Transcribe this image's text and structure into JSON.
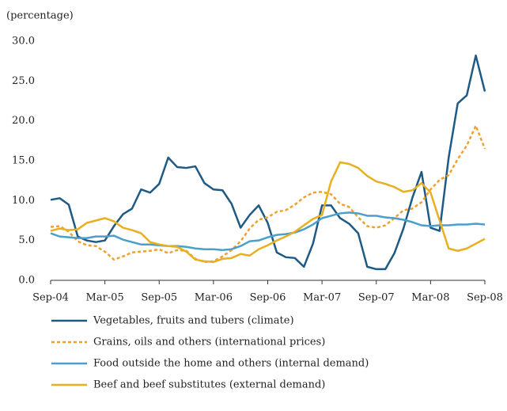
{
  "chart_data": {
    "type": "line",
    "y_label": "(percentage)",
    "categories": [
      "Sep-04",
      null,
      null,
      null,
      null,
      null,
      "Mar-05",
      null,
      null,
      null,
      null,
      null,
      "Sep-05",
      null,
      null,
      null,
      null,
      null,
      "Mar-06",
      null,
      null,
      null,
      null,
      null,
      "Sep-06",
      null,
      null,
      null,
      null,
      null,
      "Mar-07",
      null,
      null,
      null,
      null,
      null,
      "Sep-07",
      null,
      null,
      null,
      null,
      null,
      "Mar-08",
      null,
      null,
      null,
      null,
      null,
      "Sep-08"
    ],
    "ylim": [
      0,
      30
    ],
    "yticks": [
      {
        "value": 0,
        "label": "0.0"
      },
      {
        "value": 5,
        "label": "5.0"
      },
      {
        "value": 10,
        "label": "10.0"
      },
      {
        "value": 15,
        "label": "15.0"
      },
      {
        "value": 20,
        "label": "20.0"
      },
      {
        "value": 25,
        "label": "25.0"
      },
      {
        "value": 30,
        "label": "30.0"
      }
    ],
    "grid": false,
    "legend": "bottom",
    "series": [
      {
        "name": "Vegetables, fruits and tubers (climate)",
        "color": "#1f5a85",
        "dashed": false,
        "values": [
          10.1,
          10.3,
          9.5,
          5.5,
          5.0,
          4.8,
          5.0,
          6.8,
          8.3,
          9.0,
          11.4,
          11.0,
          12.1,
          15.4,
          14.2,
          14.1,
          14.3,
          12.2,
          11.4,
          11.3,
          9.6,
          6.6,
          8.2,
          9.4,
          7.2,
          3.5,
          2.9,
          2.8,
          1.7,
          4.6,
          9.4,
          9.4,
          7.8,
          7.1,
          5.9,
          1.7,
          1.4,
          1.4,
          3.4,
          6.5,
          10.4,
          13.6,
          6.6,
          6.2,
          15.4,
          22.2,
          23.2,
          28.2,
          23.7
        ]
      },
      {
        "name": "Grains, oils and others (international prices)",
        "color": "#f0a030",
        "dashed": true,
        "values": [
          6.7,
          6.8,
          6.1,
          4.9,
          4.4,
          4.3,
          3.6,
          2.6,
          3.0,
          3.5,
          3.6,
          3.7,
          3.9,
          3.4,
          3.8,
          3.7,
          2.7,
          2.3,
          2.4,
          3.0,
          3.8,
          4.9,
          6.5,
          7.6,
          7.9,
          8.6,
          8.8,
          9.5,
          10.4,
          11.0,
          11.1,
          10.8,
          9.6,
          9.2,
          7.9,
          6.8,
          6.6,
          6.9,
          7.8,
          8.8,
          9.0,
          9.8,
          11.4,
          12.6,
          13.2,
          15.2,
          16.9,
          19.4,
          16.5
        ]
      },
      {
        "name": "Food outside the home and others (internal demand)",
        "color": "#4aa0c8",
        "dashed": false,
        "values": [
          5.9,
          5.5,
          5.4,
          5.3,
          5.3,
          5.5,
          5.5,
          5.6,
          5.1,
          4.8,
          4.5,
          4.5,
          4.4,
          4.3,
          4.3,
          4.2,
          4.0,
          3.9,
          3.9,
          3.8,
          3.9,
          4.3,
          4.9,
          5.0,
          5.4,
          5.7,
          5.8,
          6.0,
          6.4,
          7.0,
          7.8,
          8.1,
          8.4,
          8.5,
          8.4,
          8.1,
          8.1,
          7.9,
          7.8,
          7.6,
          7.3,
          6.9,
          6.8,
          6.9,
          6.9,
          7.0,
          7.0,
          7.1,
          7.0
        ]
      },
      {
        "name": "Beef and beef substitutes (external demand)",
        "color": "#e8b020",
        "dashed": false,
        "values": [
          6.2,
          6.5,
          6.3,
          6.4,
          7.2,
          7.5,
          7.8,
          7.4,
          6.6,
          6.3,
          5.9,
          4.8,
          4.5,
          4.3,
          4.2,
          3.6,
          2.6,
          2.4,
          2.3,
          2.7,
          2.8,
          3.3,
          3.1,
          3.9,
          4.4,
          5.0,
          5.5,
          6.1,
          6.9,
          7.7,
          8.2,
          12.4,
          14.8,
          14.6,
          14.1,
          13.1,
          12.4,
          12.1,
          11.7,
          11.1,
          11.3,
          12.2,
          11.0,
          7.5,
          4.0,
          3.7,
          4.0,
          4.6,
          5.2
        ]
      }
    ]
  }
}
